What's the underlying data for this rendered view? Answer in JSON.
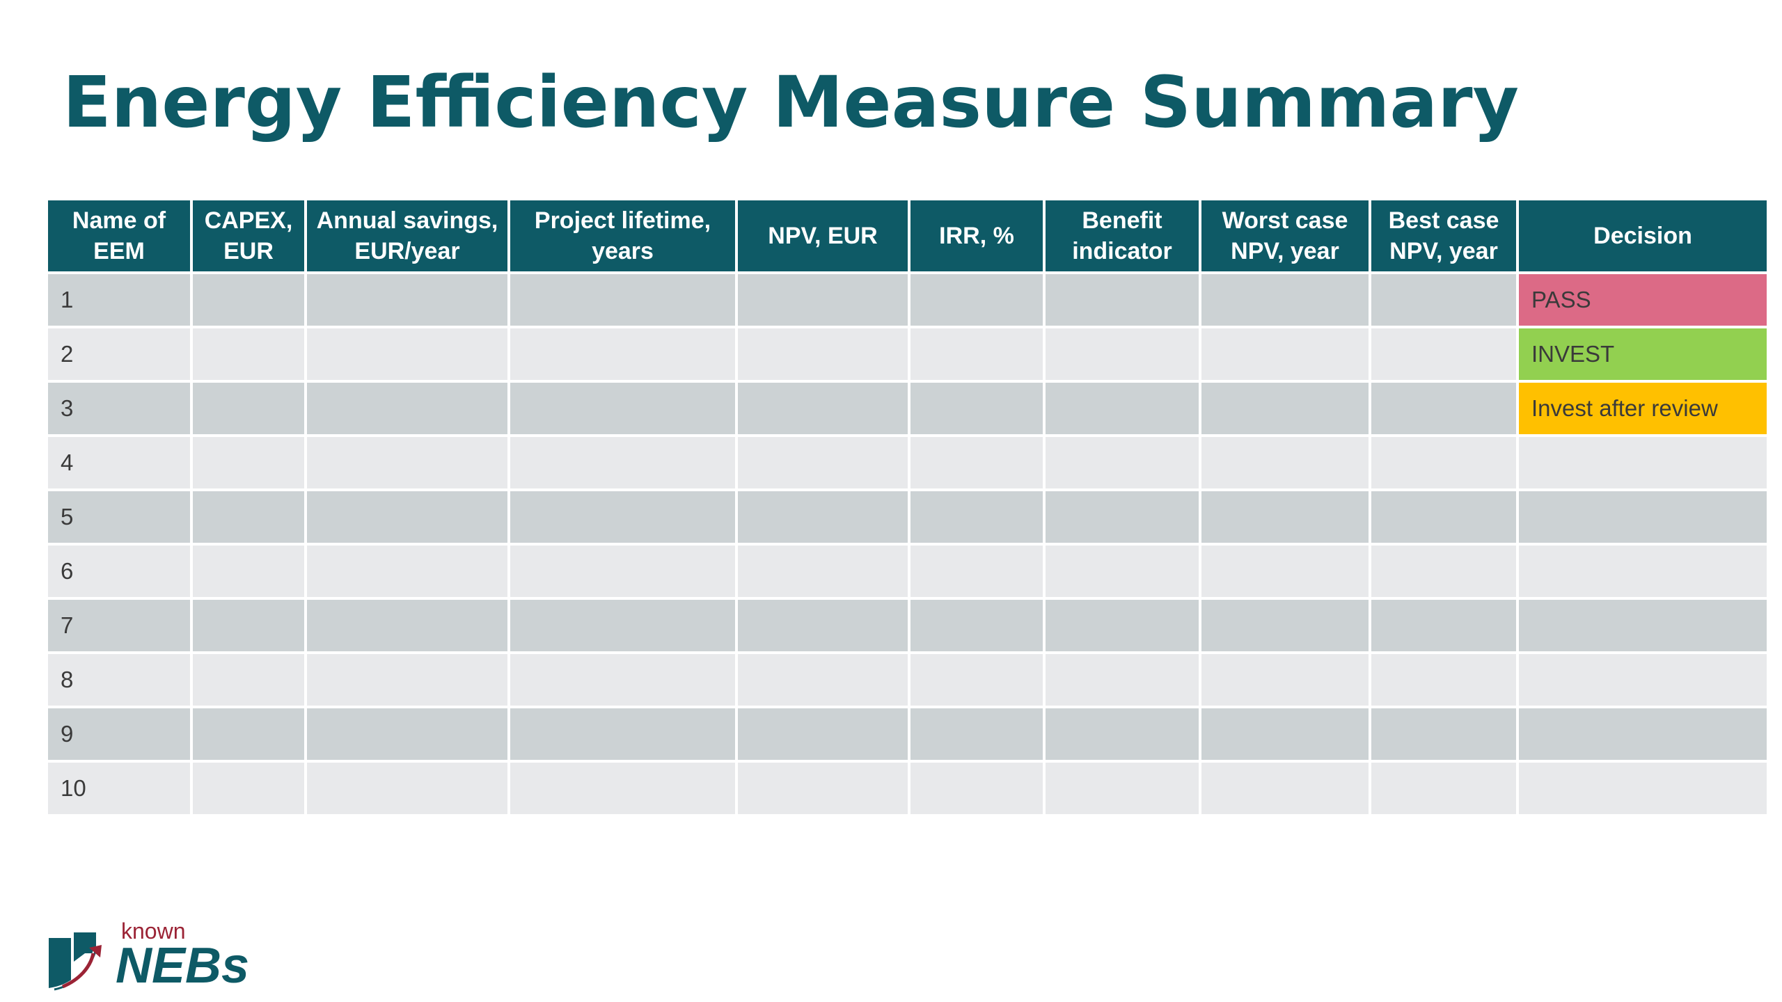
{
  "title": "Energy Efficiency Measure Summary",
  "table": {
    "headers": [
      {
        "line1": "Name of",
        "line2": "EEM"
      },
      {
        "line1": "CAPEX,",
        "line2": "EUR"
      },
      {
        "line1": "Annual savings,",
        "line2": "EUR/year"
      },
      {
        "line1": "Project lifetime,",
        "line2": "years"
      },
      {
        "line1": "NPV, EUR",
        "line2": ""
      },
      {
        "line1": "IRR, %",
        "line2": ""
      },
      {
        "line1": "Benefit",
        "line2": "indicator"
      },
      {
        "line1": "Worst case",
        "line2": "NPV, year"
      },
      {
        "line1": "Best case",
        "line2": "NPV, year"
      },
      {
        "line1": "Decision",
        "line2": ""
      }
    ],
    "rows": [
      {
        "name": "1",
        "decision": "PASS"
      },
      {
        "name": "2",
        "decision": "INVEST"
      },
      {
        "name": "3",
        "decision": "Invest after review"
      },
      {
        "name": "4",
        "decision": ""
      },
      {
        "name": "5",
        "decision": ""
      },
      {
        "name": "6",
        "decision": ""
      },
      {
        "name": "7",
        "decision": ""
      },
      {
        "name": "8",
        "decision": ""
      },
      {
        "name": "9",
        "decision": ""
      },
      {
        "name": "10",
        "decision": ""
      }
    ]
  },
  "colors": {
    "header_bg": "#0e5a66",
    "title": "#0e5a66",
    "row_dark": "#ccd2d4",
    "row_light": "#e8e9eb",
    "pass": "#dc6a86",
    "invest": "#92d050",
    "review": "#ffc000"
  },
  "logo": {
    "small_text": "known",
    "large_text": "NEBs"
  }
}
